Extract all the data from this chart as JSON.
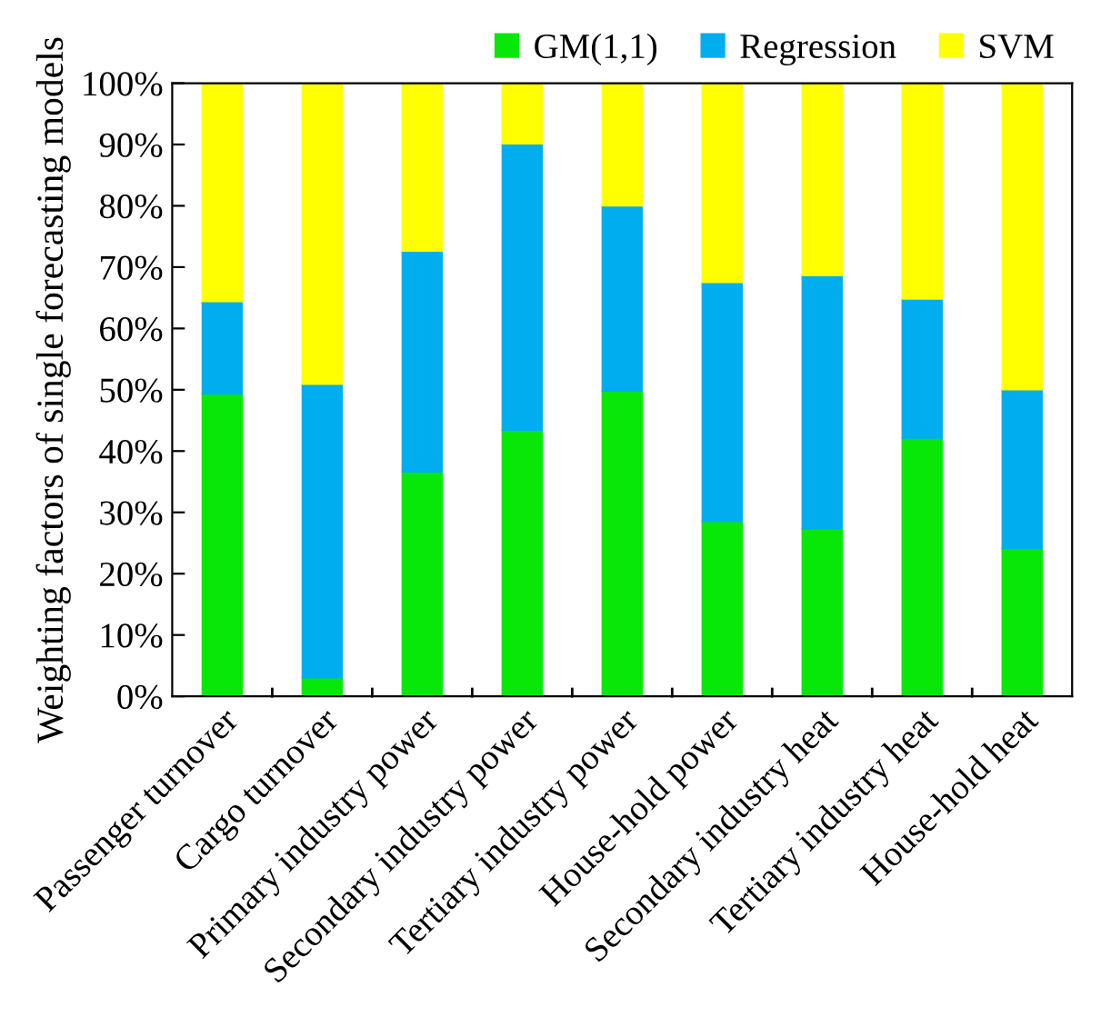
{
  "chart_data": {
    "type": "bar",
    "stacked": true,
    "ylabel": "Weighting factors of single forecasting models",
    "categories": [
      "Passenger turnover",
      "Cargo turnover",
      "Primary industry power",
      "Secondary industry power",
      "Tertiary industry power",
      "House-hold power",
      "Secondary industry heat",
      "Tertiary industry heat",
      "House-hold heat"
    ],
    "series": [
      {
        "name": "GM(1,1)",
        "color": "#08e808",
        "values": [
          49.3,
          3.0,
          36.6,
          43.4,
          49.8,
          28.5,
          27.3,
          42.1,
          24.1
        ]
      },
      {
        "name": "Regression",
        "color": "#00aeef",
        "values": [
          15.1,
          47.9,
          36.0,
          46.7,
          30.2,
          39.0,
          41.3,
          22.7,
          25.9
        ]
      },
      {
        "name": "SVM",
        "color": "#ffff00",
        "values": [
          35.6,
          49.1,
          27.4,
          9.9,
          20.0,
          32.5,
          31.4,
          35.2,
          50.0
        ]
      }
    ],
    "ylim": [
      0,
      100
    ],
    "yticks": [
      {
        "value": 0,
        "label": "0%"
      },
      {
        "value": 10,
        "label": "10%"
      },
      {
        "value": 20,
        "label": "20%"
      },
      {
        "value": 30,
        "label": "30%"
      },
      {
        "value": 40,
        "label": "40%"
      },
      {
        "value": 50,
        "label": "50%"
      },
      {
        "value": 60,
        "label": "60%"
      },
      {
        "value": 70,
        "label": "70%"
      },
      {
        "value": 80,
        "label": "80%"
      },
      {
        "value": 90,
        "label": "90%"
      },
      {
        "value": 100,
        "label": "100%"
      }
    ],
    "legend": "top right"
  }
}
